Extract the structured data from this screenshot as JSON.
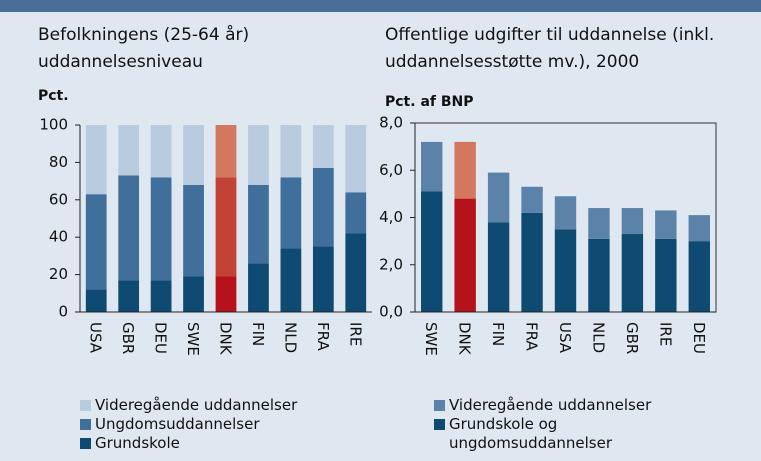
{
  "chart_data": [
    {
      "type": "stacked_bar",
      "title": "Befolkningens (25-64 år) uddannelsesniveau",
      "ylabel": "Pct.",
      "categories": [
        "USA",
        "GBR",
        "DEU",
        "SWE",
        "DNK",
        "FIN",
        "NLD",
        "FRA",
        "IRE"
      ],
      "series": [
        {
          "name": "Grundskole",
          "color": "#0f4a73",
          "colors": [
            "#0f4a73",
            "#0f4a73",
            "#0f4a73",
            "#0f4a73",
            "#b5121b",
            "#0f4a73",
            "#0f4a73",
            "#0f4a73",
            "#0f4a73"
          ],
          "values": [
            12,
            17,
            17,
            19,
            19,
            26,
            34,
            35,
            42
          ]
        },
        {
          "name": "Ungdomsuddannelser",
          "color": "#3f6f9a",
          "colors": [
            "#3f6f9a",
            "#3f6f9a",
            "#3f6f9a",
            "#3f6f9a",
            "#c24236",
            "#3f6f9a",
            "#3f6f9a",
            "#3f6f9a",
            "#3f6f9a"
          ],
          "values": [
            51,
            56,
            55,
            49,
            53,
            42,
            38,
            42,
            22
          ]
        },
        {
          "name": "Videregående uddannelser",
          "color": "#b9cbdf",
          "colors": [
            "#b9cbdf",
            "#b9cbdf",
            "#b9cbdf",
            "#b9cbdf",
            "#d4775f",
            "#b9cbdf",
            "#b9cbdf",
            "#b9cbdf",
            "#b9cbdf"
          ],
          "values": [
            37,
            27,
            28,
            32,
            28,
            32,
            28,
            23,
            36
          ]
        }
      ],
      "ylim": [
        0,
        100
      ],
      "yticks": [
        0,
        20,
        40,
        60,
        80,
        100
      ],
      "frame": false
    },
    {
      "type": "stacked_bar",
      "title": "Offentlige udgifter til uddannelse (inkl. uddannelsesstøtte mv.), 2000",
      "ylabel": "Pct. af BNP",
      "categories": [
        "SWE",
        "DNK",
        "FIN",
        "FRA",
        "USA",
        "NLD",
        "GBR",
        "IRE",
        "DEU"
      ],
      "series": [
        {
          "name": "Grundskole og ungdomsuddannelser",
          "color": "#0f4a73",
          "colors": [
            "#0f4a73",
            "#b5121b",
            "#0f4a73",
            "#0f4a73",
            "#0f4a73",
            "#0f4a73",
            "#0f4a73",
            "#0f4a73",
            "#0f4a73"
          ],
          "values": [
            5.1,
            4.8,
            3.8,
            4.2,
            3.5,
            3.1,
            3.3,
            3.1,
            3.0
          ]
        },
        {
          "name": "Videregående uddannelser",
          "color": "#5b82a8",
          "colors": [
            "#5b82a8",
            "#d4775f",
            "#5b82a8",
            "#5b82a8",
            "#5b82a8",
            "#5b82a8",
            "#5b82a8",
            "#5b82a8",
            "#5b82a8"
          ],
          "values": [
            2.1,
            2.4,
            2.1,
            1.1,
            1.4,
            1.3,
            1.1,
            1.2,
            1.1
          ]
        }
      ],
      "ylim": [
        0,
        8
      ],
      "yticks": [
        {
          "value": 0,
          "label": "0,0"
        },
        {
          "value": 2,
          "label": "2,0"
        },
        {
          "value": 4,
          "label": "4,0"
        },
        {
          "value": 6,
          "label": "6,0"
        },
        {
          "value": 8,
          "label": "8,0"
        }
      ],
      "frame": true
    }
  ]
}
